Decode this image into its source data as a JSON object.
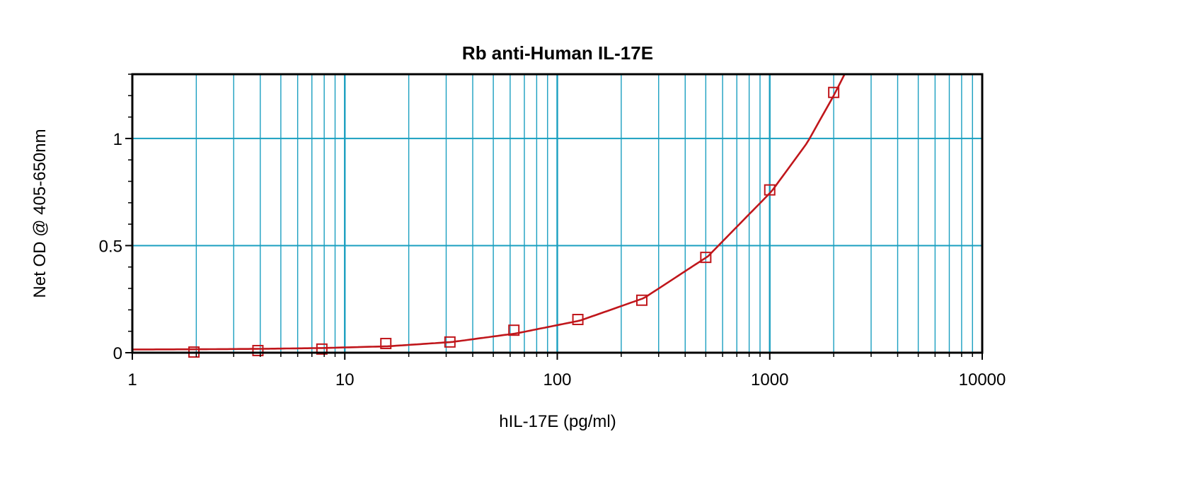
{
  "chart_data": {
    "type": "scatter",
    "title": "Rb anti-Human IL-17E",
    "xlabel": "hIL-17E (pg/ml)",
    "ylabel": "Net OD @ 405-650nm",
    "xscale": "log",
    "xlim": [
      1,
      10000
    ],
    "ylim": [
      0,
      1.3
    ],
    "x_ticks": [
      1,
      10,
      100,
      1000,
      10000
    ],
    "x_tick_labels": [
      "1",
      "10",
      "100",
      "1000",
      "10000"
    ],
    "y_ticks": [
      0,
      0.5,
      1
    ],
    "y_tick_labels": [
      "0",
      "0.5",
      "1"
    ],
    "grid": true,
    "legend": "none",
    "colors": {
      "grid": "#1a9fc0",
      "series": "#c0161b",
      "frame": "#000000"
    },
    "series": [
      {
        "marker": "square",
        "x": [
          1.95,
          3.9,
          7.8,
          15.6,
          31.25,
          62.5,
          125,
          250,
          500,
          1000,
          2000
        ],
        "y": [
          0.003,
          0.01,
          0.017,
          0.043,
          0.05,
          0.105,
          0.155,
          0.245,
          0.445,
          0.76,
          1.215
        ]
      }
    ],
    "fit_curve": {
      "x": [
        1,
        2,
        4,
        8,
        16,
        32,
        64,
        128,
        256,
        512,
        1024,
        1500,
        2000,
        2250
      ],
      "y": [
        0.015,
        0.016,
        0.018,
        0.022,
        0.03,
        0.05,
        0.09,
        0.15,
        0.255,
        0.45,
        0.755,
        0.98,
        1.2,
        1.3
      ]
    }
  }
}
